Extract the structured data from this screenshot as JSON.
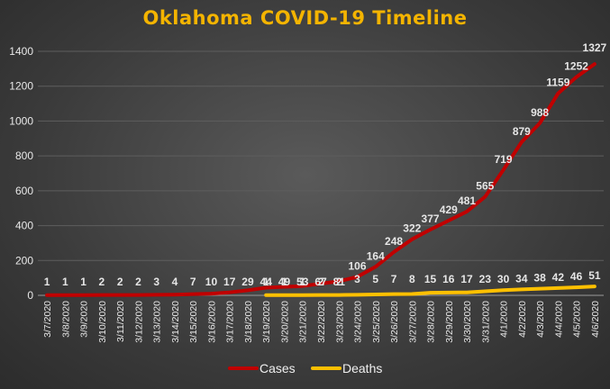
{
  "chart_data": {
    "type": "line",
    "title": "Oklahoma  COVID-19  Timeline",
    "xlabel": "",
    "ylabel": "",
    "ylim": [
      0,
      1400
    ],
    "yticks": [
      0,
      200,
      400,
      600,
      800,
      1000,
      1200,
      1400
    ],
    "grid": true,
    "legend": "bottom",
    "categories": [
      "3/7/2020",
      "3/8/2020",
      "3/9/2020",
      "3/10/2020",
      "3/11/2020",
      "3/12/2020",
      "3/13/2020",
      "3/14/2020",
      "3/15/2020",
      "3/16/2020",
      "3/17/2020",
      "3/18/2020",
      "3/19/2020",
      "3/20/2020",
      "3/21/2020",
      "3/22/2020",
      "3/23/2020",
      "3/24/2020",
      "3/25/2020",
      "3/26/2020",
      "3/27/2020",
      "3/28/2020",
      "3/29/2020",
      "3/30/2020",
      "3/31/2020",
      "4/1/2020",
      "4/2/2020",
      "4/3/2020",
      "4/4/2020",
      "4/5/2020",
      "4/6/2020"
    ],
    "series": [
      {
        "name": "Cases",
        "color": "#c00000",
        "values": [
          1,
          1,
          1,
          2,
          2,
          2,
          3,
          4,
          7,
          10,
          17,
          29,
          44,
          49,
          53,
          67,
          81,
          106,
          164,
          248,
          322,
          377,
          429,
          481,
          565,
          719,
          879,
          988,
          1159,
          1252,
          1327
        ]
      },
      {
        "name": "Deaths",
        "color": "#ffc000",
        "values": [
          null,
          null,
          null,
          null,
          null,
          null,
          null,
          null,
          null,
          null,
          null,
          null,
          1,
          1,
          1,
          2,
          2,
          3,
          5,
          7,
          8,
          15,
          16,
          17,
          23,
          30,
          34,
          38,
          42,
          46,
          51
        ]
      }
    ]
  }
}
